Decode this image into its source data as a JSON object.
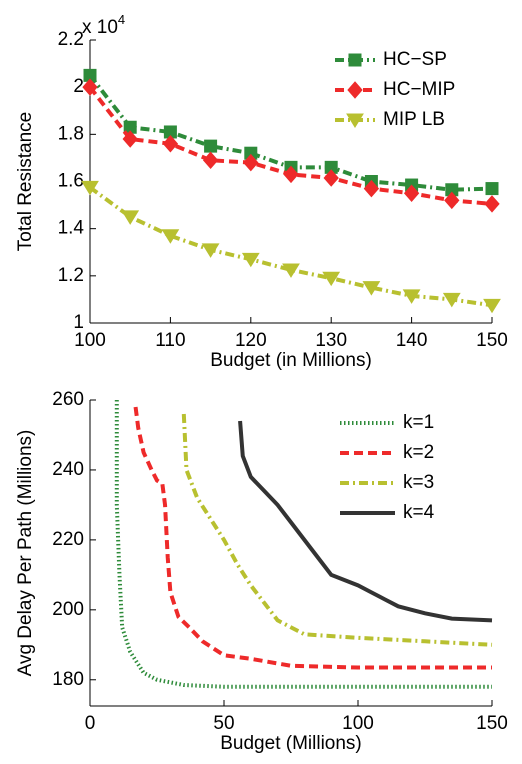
{
  "chart_data": [
    {
      "type": "line",
      "x_label": "Budget (in Millions)",
      "y_label": "Total Resistance",
      "y_multiplier": {
        "base": "x 10",
        "exponent": "4"
      },
      "xlim": [
        100,
        150
      ],
      "xticks": [
        100,
        110,
        120,
        130,
        140,
        150
      ],
      "ylim": [
        1,
        2.2
      ],
      "yticks": [
        1,
        1.2,
        1.4,
        1.6,
        1.8,
        2,
        2.2
      ],
      "legend": "upper right",
      "series": [
        {
          "name": "HC−SP",
          "color": "#2e8b3a",
          "dash": "dashdot",
          "marker": "square",
          "x": [
            100,
            105,
            110,
            115,
            120,
            125,
            130,
            135,
            140,
            145,
            150
          ],
          "values": [
            2.05,
            1.83,
            1.81,
            1.75,
            1.72,
            1.66,
            1.66,
            1.6,
            1.585,
            1.565,
            1.57
          ]
        },
        {
          "name": "HC−MIP",
          "color": "#ee2a2a",
          "dash": "dashed",
          "marker": "diamond",
          "x": [
            100,
            105,
            110,
            115,
            120,
            125,
            130,
            135,
            140,
            145,
            150
          ],
          "values": [
            2.0,
            1.78,
            1.76,
            1.69,
            1.68,
            1.63,
            1.615,
            1.57,
            1.55,
            1.52,
            1.505
          ]
        },
        {
          "name": "MIP LB",
          "color": "#b8c030",
          "dash": "dashdot",
          "marker": "triangle-down",
          "x": [
            100,
            105,
            110,
            115,
            120,
            125,
            130,
            135,
            140,
            145,
            150
          ],
          "values": [
            1.575,
            1.45,
            1.37,
            1.31,
            1.27,
            1.225,
            1.19,
            1.15,
            1.115,
            1.1,
            1.075
          ]
        }
      ]
    },
    {
      "type": "line",
      "x_label": "Budget (Millions)",
      "y_label": "Avg Delay Per Path (Millions)",
      "xlim": [
        0,
        150
      ],
      "xticks": [
        0,
        50,
        100,
        150
      ],
      "ylim": [
        172.5,
        260
      ],
      "yticks": [
        180,
        200,
        220,
        240,
        260
      ],
      "legend": "upper right",
      "series": [
        {
          "name": "k=1",
          "color": "#2e8b3a",
          "dash": "dotted",
          "x": [
            10,
            10,
            11,
            12,
            15,
            20,
            25,
            35,
            50,
            150
          ],
          "values": [
            260,
            230,
            210,
            195,
            188,
            182,
            180,
            178.5,
            178,
            178
          ]
        },
        {
          "name": "k=2",
          "color": "#ee2a2a",
          "dash": "dashed",
          "x": [
            17,
            18,
            20,
            23,
            25,
            27,
            28,
            29,
            30,
            33,
            37,
            42,
            50,
            60,
            75,
            100,
            150
          ],
          "values": [
            258,
            252,
            245,
            240,
            237,
            236,
            230,
            215,
            205,
            198,
            195,
            191,
            187,
            186,
            184,
            183.5,
            183.5
          ]
        },
        {
          "name": "k=3",
          "color": "#b8c030",
          "dash": "dashdot",
          "x": [
            35,
            36,
            40,
            45,
            50,
            55,
            60,
            65,
            70,
            80,
            100,
            125,
            150
          ],
          "values": [
            256,
            240,
            232,
            226,
            220,
            213,
            207,
            202,
            197,
            193,
            192,
            191,
            190
          ]
        },
        {
          "name": "k=4",
          "color": "#333333",
          "dash": "solid",
          "x": [
            56,
            57,
            60,
            65,
            70,
            75,
            80,
            85,
            90,
            100,
            105,
            110,
            115,
            125,
            135,
            150
          ],
          "values": [
            254,
            244,
            238,
            234,
            230,
            225,
            220,
            215,
            210,
            207,
            205,
            203,
            201,
            199,
            197.5,
            197
          ]
        }
      ]
    }
  ]
}
